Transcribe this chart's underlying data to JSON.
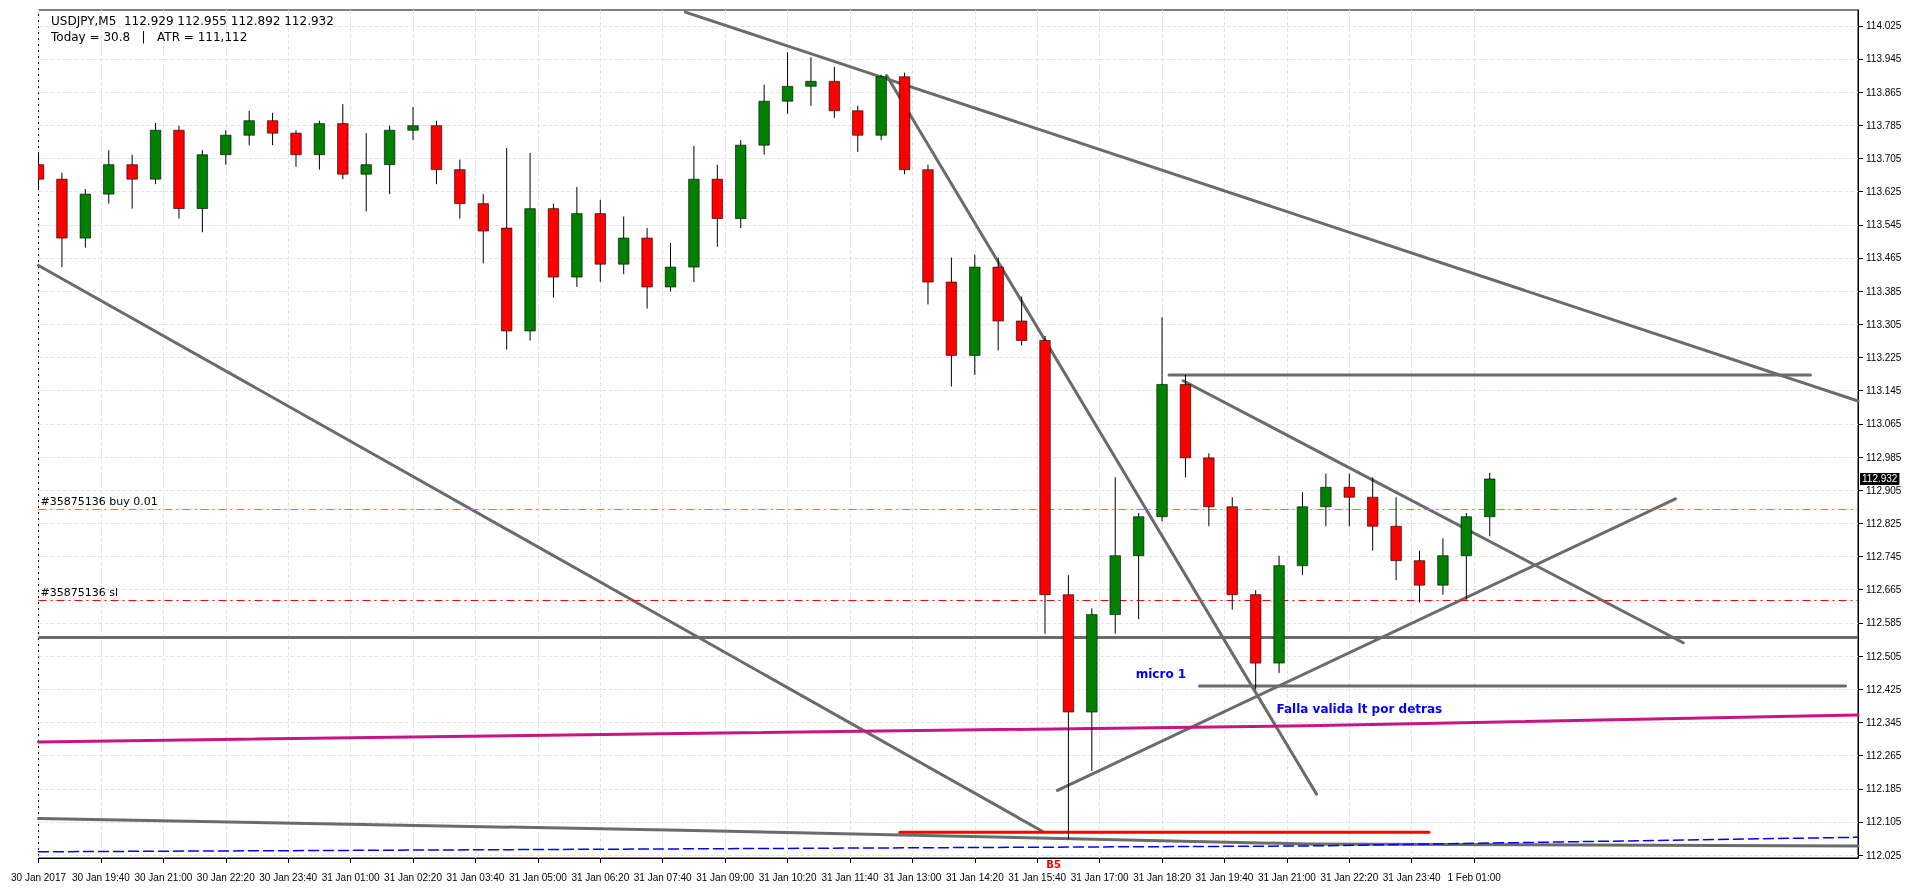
{
  "chart_data": {
    "type": "candlestick",
    "title": "USDJPY,M5  112.929 112.955 112.892 112.932",
    "subtitle": "Today = 30.8   |   ATR = 111,112",
    "x": [
      "2017-01-30T18:20",
      "2017-01-30T18:50",
      "2017-01-30T19:20",
      "2017-01-30T19:50",
      "2017-01-30T20:20",
      "2017-01-30T20:50",
      "2017-01-30T21:20",
      "2017-01-30T21:50",
      "2017-01-30T22:20",
      "2017-01-30T22:50",
      "2017-01-30T23:20",
      "2017-01-30T23:50",
      "2017-01-31T00:20",
      "2017-01-31T00:50",
      "2017-01-31T01:20",
      "2017-01-31T01:50",
      "2017-01-31T02:20",
      "2017-01-31T02:50",
      "2017-01-31T03:20",
      "2017-01-31T03:50",
      "2017-01-31T04:20",
      "2017-01-31T04:50",
      "2017-01-31T05:20",
      "2017-01-31T05:50",
      "2017-01-31T06:20",
      "2017-01-31T06:50",
      "2017-01-31T07:20",
      "2017-01-31T07:50",
      "2017-01-31T08:20",
      "2017-01-31T08:50",
      "2017-01-31T09:20",
      "2017-01-31T09:50",
      "2017-01-31T10:20",
      "2017-01-31T10:50",
      "2017-01-31T11:20",
      "2017-01-31T11:50",
      "2017-01-31T12:20",
      "2017-01-31T12:50",
      "2017-01-31T13:20",
      "2017-01-31T13:50",
      "2017-01-31T14:20",
      "2017-01-31T14:50",
      "2017-01-31T15:20",
      "2017-01-31T15:50",
      "2017-01-31T16:20",
      "2017-01-31T16:50",
      "2017-01-31T17:20",
      "2017-01-31T17:50",
      "2017-01-31T18:20",
      "2017-01-31T18:50",
      "2017-01-31T19:20",
      "2017-01-31T19:50",
      "2017-01-31T20:20",
      "2017-01-31T20:50",
      "2017-01-31T21:20",
      "2017-01-31T21:50",
      "2017-01-31T22:20",
      "2017-01-31T22:50",
      "2017-01-31T23:20",
      "2017-01-31T23:50",
      "2017-02-01T00:20",
      "2017-02-01T00:50",
      "2017-02-01T01:20"
    ],
    "ohlc": [
      [
        113.69,
        113.718,
        113.631,
        113.655
      ],
      [
        113.655,
        113.671,
        113.443,
        113.513
      ],
      [
        113.513,
        113.631,
        113.49,
        113.619
      ],
      [
        113.619,
        113.725,
        113.596,
        113.69
      ],
      [
        113.69,
        113.714,
        113.584,
        113.655
      ],
      [
        113.655,
        113.791,
        113.643,
        113.773
      ],
      [
        113.773,
        113.784,
        113.56,
        113.584
      ],
      [
        113.584,
        113.725,
        113.527,
        113.714
      ],
      [
        113.714,
        113.773,
        113.69,
        113.761
      ],
      [
        113.761,
        113.82,
        113.737,
        113.796
      ],
      [
        113.796,
        113.815,
        113.737,
        113.766
      ],
      [
        113.766,
        113.773,
        113.685,
        113.714
      ],
      [
        113.714,
        113.796,
        113.678,
        113.789
      ],
      [
        113.789,
        113.836,
        113.655,
        113.667
      ],
      [
        113.667,
        113.766,
        113.577,
        113.69
      ],
      [
        113.69,
        113.784,
        113.619,
        113.773
      ],
      [
        113.773,
        113.829,
        113.749,
        113.784
      ],
      [
        113.784,
        113.796,
        113.643,
        113.678
      ],
      [
        113.678,
        113.702,
        113.56,
        113.596
      ],
      [
        113.596,
        113.619,
        113.452,
        113.53
      ],
      [
        113.537,
        113.73,
        113.244,
        113.289
      ],
      [
        113.289,
        113.718,
        113.266,
        113.584
      ],
      [
        113.584,
        113.596,
        113.369,
        113.419
      ],
      [
        113.419,
        113.636,
        113.395,
        113.572
      ],
      [
        113.572,
        113.605,
        113.407,
        113.45
      ],
      [
        113.45,
        113.565,
        113.426,
        113.513
      ],
      [
        113.513,
        113.537,
        113.343,
        113.395
      ],
      [
        113.395,
        113.501,
        113.384,
        113.443
      ],
      [
        113.443,
        113.735,
        113.407,
        113.655
      ],
      [
        113.655,
        113.69,
        113.492,
        113.56
      ],
      [
        113.56,
        113.749,
        113.537,
        113.737
      ],
      [
        113.737,
        113.883,
        113.714,
        113.843
      ],
      [
        113.843,
        113.961,
        113.813,
        113.879
      ],
      [
        113.879,
        113.949,
        113.832,
        113.891
      ],
      [
        113.891,
        113.926,
        113.803,
        113.82
      ],
      [
        113.82,
        113.832,
        113.721,
        113.761
      ],
      [
        113.761,
        113.907,
        113.749,
        113.902
      ],
      [
        113.902,
        113.912,
        113.667,
        113.678
      ],
      [
        113.678,
        113.69,
        113.353,
        113.407
      ],
      [
        113.407,
        113.466,
        113.155,
        113.23
      ],
      [
        113.23,
        113.473,
        113.183,
        113.443
      ],
      [
        113.443,
        113.466,
        113.242,
        113.313
      ],
      [
        113.313,
        113.372,
        113.254,
        113.266
      ],
      [
        113.266,
        113.277,
        112.559,
        112.653
      ],
      [
        112.653,
        112.7,
        112.063,
        112.37
      ],
      [
        112.37,
        112.62,
        112.228,
        112.605
      ],
      [
        112.605,
        112.936,
        112.559,
        112.747
      ],
      [
        112.747,
        112.85,
        112.594,
        112.841
      ],
      [
        112.841,
        113.322,
        112.83,
        113.16
      ],
      [
        113.16,
        113.183,
        112.936,
        112.983
      ],
      [
        112.983,
        112.994,
        112.818,
        112.865
      ],
      [
        112.865,
        112.888,
        112.617,
        112.653
      ],
      [
        112.653,
        112.664,
        112.424,
        112.488
      ],
      [
        112.488,
        112.747,
        112.464,
        112.723
      ],
      [
        112.723,
        112.9,
        112.7,
        112.865
      ],
      [
        112.865,
        112.945,
        112.818,
        112.912
      ],
      [
        112.912,
        112.945,
        112.818,
        112.888
      ],
      [
        112.888,
        112.936,
        112.759,
        112.818
      ],
      [
        112.818,
        112.888,
        112.688,
        112.735
      ],
      [
        112.735,
        112.759,
        112.634,
        112.676
      ],
      [
        112.676,
        112.789,
        112.653,
        112.747
      ],
      [
        112.747,
        112.85,
        112.641,
        112.841
      ],
      [
        112.841,
        112.947,
        112.794,
        112.932
      ]
    ],
    "series": [
      {
        "type": "line",
        "color": "#6b6b6b",
        "x": [
          "2017-01-31T08:09",
          "2017-02-01T09:12"
        ],
        "values": [
          114.058,
          113.12
        ]
      },
      {
        "type": "line",
        "color": "#6b6b6b",
        "x": [
          "2017-01-31T12:27",
          "2017-01-31T21:38"
        ],
        "values": [
          113.905,
          112.172
        ]
      },
      {
        "type": "line",
        "color": "#6b6b6b",
        "x": [
          "2017-01-30T18:20",
          "2017-01-31T15:47"
        ],
        "values": [
          113.447,
          112.082
        ]
      },
      {
        "type": "line",
        "color": "#6b6b6b",
        "x": [
          "2017-01-31T18:29",
          "2017-02-01T08:11"
        ],
        "values": [
          113.183,
          113.183
        ]
      },
      {
        "type": "line",
        "color": "#6b6b6b",
        "x": [
          "2017-01-31T18:47",
          "2017-02-01T05:28"
        ],
        "values": [
          113.169,
          112.537
        ]
      },
      {
        "type": "line",
        "color": "#6b6b6b",
        "x": [
          "2017-01-31T16:06",
          "2017-02-01T05:18"
        ],
        "values": [
          112.181,
          112.884
        ]
      },
      {
        "type": "line",
        "color": "#6b6b6b",
        "x": [
          "2017-01-31T19:08",
          "2017-02-01T08:56"
        ],
        "values": [
          112.433,
          112.433
        ]
      },
      {
        "type": "line",
        "color": "#c71585",
        "x": [
          "2017-01-30T18:20",
          "2017-01-31T08:03",
          "2017-01-31T21:26",
          "2017-02-01T09:12"
        ],
        "values": [
          112.298,
          112.318,
          112.337,
          112.363
        ]
      },
      {
        "type": "line",
        "color": "#6b6b6b",
        "x": [
          "2017-01-30T18:20",
          "2017-01-31T08:03",
          "2017-01-31T21:26",
          "2017-02-01T09:12"
        ],
        "values": [
          112.113,
          112.085,
          112.052,
          112.047
        ]
      },
      {
        "type": "line",
        "color": "#0000ff",
        "line_style": "dashed",
        "x": [
          "2017-01-30T18:20",
          "2017-01-31T08:03",
          "2017-01-31T21:26",
          "2017-02-01T09:12"
        ],
        "values": [
          112.033,
          112.04,
          112.047,
          112.068
        ]
      },
      {
        "type": "line",
        "color": "#ff0000",
        "x": [
          "2017-01-31T12:44",
          "2017-02-01T00:02"
        ],
        "values": [
          112.08,
          112.08
        ]
      }
    ],
    "ref_lines": [
      {
        "axis": "y",
        "value": 112.86,
        "label": "#35875136 buy 0.01",
        "color": "#32cd32",
        "line_style": "dashed"
      },
      {
        "axis": "y",
        "value": 112.64,
        "label": "#35875136 sl",
        "color": "#ff0000",
        "line_style": "dashed"
      },
      {
        "axis": "y",
        "value": 112.545,
        "color": "#6b6b6b",
        "line_style": "solid"
      }
    ],
    "annotations": [
      "micro 1",
      "Falla valida lt por detras",
      "B5",
      "112.932"
    ],
    "xlim": [
      "2017-01-30T18:20",
      "2017-02-01T09:12"
    ],
    "xticks": [
      {
        "value": "2017-01-30T18:20",
        "label": "30 Jan 2017"
      },
      {
        "value": "2017-01-30T19:40",
        "label": "30 Jan 19:40"
      },
      {
        "value": "2017-01-30T21:00",
        "label": "30 Jan 21:00"
      },
      {
        "value": "2017-01-30T22:20",
        "label": "30 Jan 22:20"
      },
      {
        "value": "2017-01-30T23:40",
        "label": "30 Jan 23:40"
      },
      {
        "value": "2017-01-31T01:00",
        "label": "31 Jan 01:00"
      },
      {
        "value": "2017-01-31T02:20",
        "label": "31 Jan 02:20"
      },
      {
        "value": "2017-01-31T03:40",
        "label": "31 Jan 03:40"
      },
      {
        "value": "2017-01-31T05:00",
        "label": "31 Jan 05:00"
      },
      {
        "value": "2017-01-31T06:20",
        "label": "31 Jan 06:20"
      },
      {
        "value": "2017-01-31T07:40",
        "label": "31 Jan 07:40"
      },
      {
        "value": "2017-01-31T09:00",
        "label": "31 Jan 09:00"
      },
      {
        "value": "2017-01-31T10:20",
        "label": "31 Jan 10:20"
      },
      {
        "value": "2017-01-31T11:40",
        "label": "31 Jan 11:40"
      },
      {
        "value": "2017-01-31T13:00",
        "label": "31 Jan 13:00"
      },
      {
        "value": "2017-01-31T14:20",
        "label": "31 Jan 14:20"
      },
      {
        "value": "2017-01-31T15:40",
        "label": "31 Jan 15:40"
      },
      {
        "value": "2017-01-31T17:00",
        "label": "31 Jan 17:00"
      },
      {
        "value": "2017-01-31T18:20",
        "label": "31 Jan 18:20"
      },
      {
        "value": "2017-01-31T19:40",
        "label": "31 Jan 19:40"
      },
      {
        "value": "2017-01-31T21:00",
        "label": "31 Jan 21:00"
      },
      {
        "value": "2017-01-31T22:20",
        "label": "31 Jan 22:20"
      },
      {
        "value": "2017-01-31T23:40",
        "label": "31 Jan 23:40"
      },
      {
        "value": "2017-02-01T01:00",
        "label": "1 Feb 01:00"
      }
    ],
    "ylim": [
      112.018,
      114.063
    ],
    "yticks": [
      112.025,
      112.105,
      112.185,
      112.265,
      112.345,
      112.425,
      112.505,
      112.585,
      112.665,
      112.745,
      112.825,
      112.905,
      112.985,
      113.065,
      113.145,
      113.225,
      113.305,
      113.385,
      113.465,
      113.545,
      113.625,
      113.705,
      113.785,
      113.865,
      113.945,
      114.025
    ],
    "grid": true
  }
}
